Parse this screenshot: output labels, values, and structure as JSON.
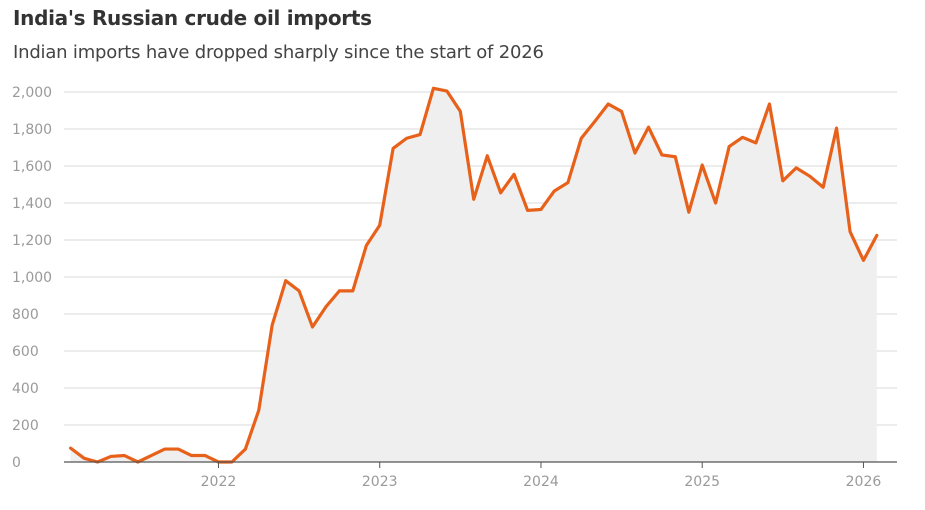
{
  "header": {
    "title": "India's Russian crude oil imports",
    "subtitle": "Indian imports have dropped sharply since the start of 2026"
  },
  "colors": {
    "line": "#E8611A",
    "area": "#EFEFEF",
    "grid": "#D9D9D9",
    "axis": "#555555",
    "tick_text": "#9A9A9A"
  },
  "chart_data": {
    "type": "area",
    "title": "India's Russian crude oil imports",
    "subtitle": "Indian imports have dropped sharply since the start of 2026",
    "xlabel": "",
    "ylabel": "",
    "ylim": [
      0,
      2000
    ],
    "yticks": [
      0,
      200,
      400,
      600,
      800,
      1000,
      1200,
      1400,
      1600,
      1800,
      2000
    ],
    "ytick_labels": [
      "0",
      "200",
      "400",
      "600",
      "800",
      "1,000",
      "1,200",
      "1,400",
      "1,600",
      "1,800",
      "2,000"
    ],
    "xlim": [
      2021.042,
      2026.208
    ],
    "xticks": [
      2022,
      2023,
      2024,
      2025,
      2026
    ],
    "xtick_labels": [
      "2022",
      "2023",
      "2024",
      "2025",
      "2026"
    ],
    "grid": true,
    "series": [
      {
        "name": "India's Russian crude oil imports",
        "x": [
          2021.083,
          2021.167,
          2021.25,
          2021.333,
          2021.417,
          2021.5,
          2021.583,
          2021.667,
          2021.75,
          2021.833,
          2021.917,
          2022.0,
          2022.083,
          2022.167,
          2022.25,
          2022.333,
          2022.417,
          2022.5,
          2022.583,
          2022.667,
          2022.75,
          2022.833,
          2022.917,
          2023.0,
          2023.083,
          2023.167,
          2023.25,
          2023.333,
          2023.417,
          2023.5,
          2023.583,
          2023.667,
          2023.75,
          2023.833,
          2023.917,
          2024.0,
          2024.083,
          2024.167,
          2024.25,
          2024.333,
          2024.417,
          2024.5,
          2024.583,
          2024.667,
          2024.75,
          2024.833,
          2024.917,
          2025.0,
          2025.083,
          2025.167,
          2025.25,
          2025.333,
          2025.417,
          2025.5,
          2025.583,
          2025.667,
          2025.75,
          2025.833,
          2025.917,
          2026.0,
          2026.083
        ],
        "values": [
          75,
          20,
          0,
          30,
          35,
          0,
          35,
          70,
          70,
          35,
          35,
          0,
          0,
          70,
          280,
          740,
          980,
          925,
          730,
          840,
          925,
          925,
          1170,
          1280,
          1695,
          1750,
          1770,
          2020,
          2005,
          1895,
          1420,
          1655,
          1455,
          1555,
          1360,
          1365,
          1465,
          1510,
          1750,
          1840,
          1935,
          1895,
          1670,
          1810,
          1660,
          1650,
          1350,
          1605,
          1400,
          1705,
          1755,
          1725,
          1935,
          1520,
          1590,
          1545,
          1485,
          1805,
          1245,
          1090,
          1225
        ]
      }
    ]
  }
}
